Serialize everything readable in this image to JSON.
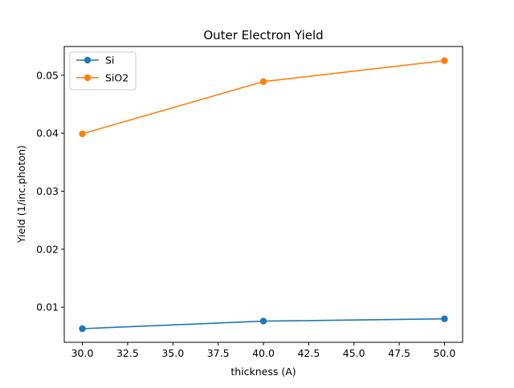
{
  "chart_data": {
    "type": "line",
    "title": "Outer Electron Yield",
    "xlabel": "thickness (A)",
    "ylabel": "Yield (1/inc.photon)",
    "x": [
      30,
      40,
      50
    ],
    "series": [
      {
        "name": "Si",
        "color": "#1f77b4",
        "marker": "circle",
        "values": [
          0.0063,
          0.0076,
          0.008
        ]
      },
      {
        "name": "SiO2",
        "color": "#ff7f0e",
        "marker": "circle",
        "values": [
          0.0399,
          0.0489,
          0.0525
        ]
      }
    ],
    "xlim": [
      29.0,
      51.0
    ],
    "ylim": [
      0.00395,
      0.05495
    ],
    "xticks": [
      30.0,
      32.5,
      35.0,
      37.5,
      40.0,
      42.5,
      45.0,
      47.5,
      50.0
    ],
    "xtick_labels": [
      "30.0",
      "32.5",
      "35.0",
      "37.5",
      "40.0",
      "42.5",
      "45.0",
      "47.5",
      "50.0"
    ],
    "yticks": [
      0.01,
      0.02,
      0.03,
      0.04,
      0.05
    ],
    "ytick_labels": [
      "0.01",
      "0.02",
      "0.03",
      "0.04",
      "0.05"
    ],
    "grid": false,
    "legend": "upper left"
  }
}
